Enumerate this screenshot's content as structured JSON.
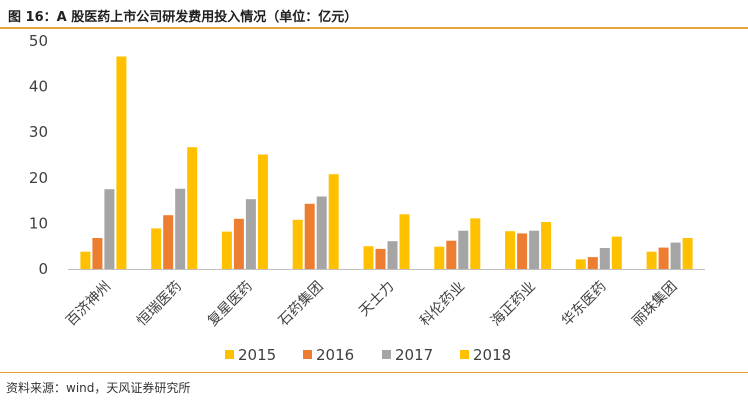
{
  "header": {
    "title": "图 16：A 股医药上市公司研发费用投入情况（单位：亿元）"
  },
  "footer": {
    "source": "资料来源：wind，天风证券研究所"
  },
  "chart_data": {
    "type": "bar",
    "title": "图 16：A 股医药上市公司研发费用投入情况（单位：亿元）",
    "categories": [
      "百济神州",
      "恒瑞医药",
      "复星医药",
      "石药集团",
      "天士力",
      "科伦药业",
      "海正药业",
      "华东医药",
      "丽珠集团"
    ],
    "series": [
      {
        "name": "2015",
        "color": "#ffc000",
        "values": [
          3.8,
          8.9,
          8.2,
          10.8,
          5.0,
          4.9,
          8.3,
          2.1,
          3.8
        ]
      },
      {
        "name": "2016",
        "color": "#ed7d31",
        "values": [
          6.8,
          11.8,
          11.0,
          14.3,
          4.4,
          6.2,
          7.8,
          2.6,
          4.7
        ]
      },
      {
        "name": "2017",
        "color": "#a5a5a5",
        "values": [
          17.5,
          17.6,
          15.3,
          15.9,
          6.1,
          8.4,
          8.4,
          4.6,
          5.8
        ]
      },
      {
        "name": "2018",
        "color": "#ffc000",
        "values": [
          46.6,
          26.7,
          25.1,
          20.8,
          12.0,
          11.1,
          10.3,
          7.1,
          6.8
        ]
      }
    ],
    "yticks": [
      0,
      10,
      20,
      30,
      40,
      50
    ],
    "ylim": [
      0,
      50
    ],
    "grid": false,
    "legend_position": "bottom",
    "xlabel": "",
    "ylabel": ""
  }
}
